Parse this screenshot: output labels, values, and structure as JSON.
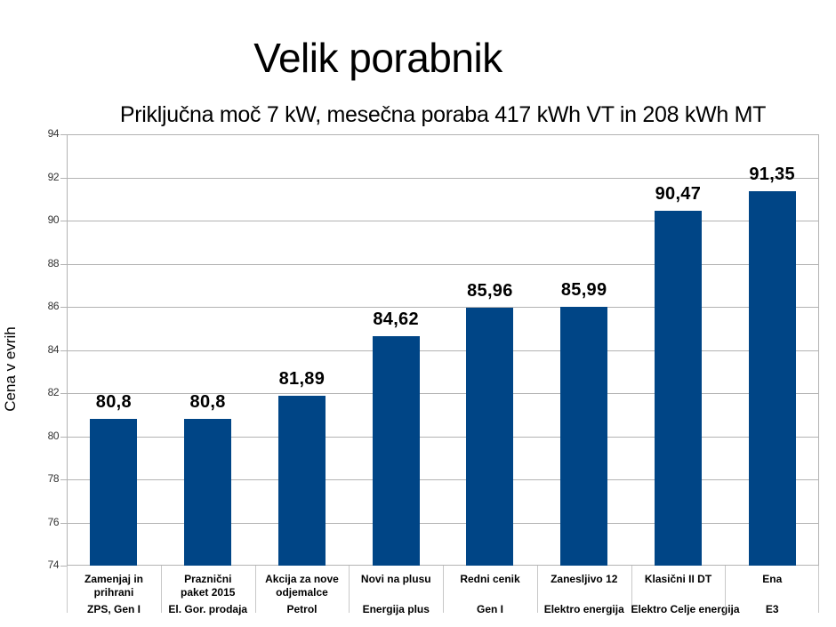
{
  "slide": {
    "title": "Velik porabnik"
  },
  "chart_data": {
    "type": "bar",
    "title": "Priključna moč 7 kW, mesečna poraba 417 kWh VT in 208 kWh MT",
    "xlabel": "",
    "ylabel": "Cena v evrih",
    "ylim": [
      74,
      94
    ],
    "yticks": [
      74,
      76,
      78,
      80,
      82,
      84,
      86,
      88,
      90,
      92,
      94
    ],
    "grid": true,
    "legend": null,
    "bar_color": "#004586",
    "categories": [
      "Zamenjaj in prihrani / ZPS, Gen I",
      "Praznični paket 2015 / El. Gor. prodaja",
      "Akcija za nove odjemalce / Petrol",
      "Novi na plusu / Energija plus",
      "Redni cenik / Gen I",
      "Zanesljivo 12 / Elektro energija",
      "Klasični II DT / Elektro Celje energija",
      "Ena / E3"
    ],
    "values": [
      80.8,
      80.8,
      81.89,
      84.62,
      85.96,
      85.99,
      90.47,
      91.35
    ],
    "value_labels": [
      "80,8",
      "80,8",
      "81,89",
      "84,62",
      "85,96",
      "85,99",
      "90,47",
      "91,35"
    ]
  },
  "axis": {
    "ylabel": "Cena v evrih",
    "ticks": [
      "94",
      "92",
      "90",
      "88",
      "86",
      "84",
      "82",
      "80",
      "78",
      "76",
      "74"
    ]
  },
  "categories": [
    {
      "tariff": "Zamenjaj in prihrani",
      "tariff_a": "Zamenjaj in",
      "tariff_b": "prihrani",
      "supplier": "ZPS, Gen I"
    },
    {
      "tariff": "Praznični paket 2015",
      "tariff_a": "Praznični",
      "tariff_b": "paket 2015",
      "supplier": "El. Gor. prodaja"
    },
    {
      "tariff": "Akcija za nove odjemalce",
      "tariff_a": "Akcija za nove",
      "tariff_b": "odjemalce",
      "supplier": "Petrol"
    },
    {
      "tariff": "Novi na plusu",
      "tariff_a": "Novi na plusu",
      "tariff_b": "",
      "supplier": "Energija plus"
    },
    {
      "tariff": "Redni cenik",
      "tariff_a": "Redni cenik",
      "tariff_b": "",
      "supplier": "Gen I"
    },
    {
      "tariff": "Zanesljivo 12",
      "tariff_a": "Zanesljivo 12",
      "tariff_b": "",
      "supplier": "Elektro energija"
    },
    {
      "tariff": "Klasični II DT",
      "tariff_a": "Klasični II DT",
      "tariff_b": "",
      "supplier": "Elektro Celje energija"
    },
    {
      "tariff": "Ena",
      "tariff_a": "Ena",
      "tariff_b": "",
      "supplier": "E3"
    }
  ]
}
